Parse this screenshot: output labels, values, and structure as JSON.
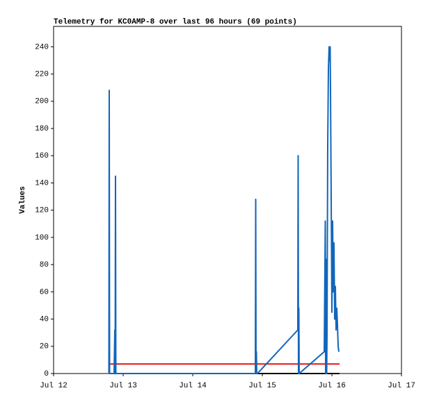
{
  "chart_data": {
    "type": "line",
    "title": "Telemetry for KC0AMP-8 over last 96 hours (69 points)",
    "y_label": "Values",
    "xlim": [
      12,
      17
    ],
    "xticks": [
      {
        "value": 12,
        "label": "Jul 12"
      },
      {
        "value": 13,
        "label": "Jul 13"
      },
      {
        "value": 14,
        "label": "Jul 14"
      },
      {
        "value": 15,
        "label": "Jul 15"
      },
      {
        "value": 16,
        "label": "Jul 16"
      },
      {
        "value": 17,
        "label": "Jul 17"
      }
    ],
    "ylim": [
      0,
      255
    ],
    "yticks": [
      0,
      20,
      40,
      60,
      80,
      100,
      120,
      140,
      160,
      180,
      200,
      220,
      240
    ],
    "series": [
      {
        "color": "#000000",
        "x": [
          12.8,
          16.11
        ],
        "values": [
          0,
          0
        ]
      },
      {
        "color": "#ee1111",
        "x": [
          12.8,
          16.11
        ],
        "values": [
          7,
          7
        ]
      },
      {
        "color": "#1166bb",
        "x": [
          12.795,
          12.8,
          12.805,
          12.87,
          12.875,
          12.88,
          12.885,
          12.89,
          12.895,
          14.9,
          14.905,
          14.91,
          14.915,
          14.92,
          14.93,
          15.51,
          15.515,
          15.52,
          15.525,
          15.53,
          15.89,
          15.905,
          15.91,
          15.915,
          15.92,
          15.925,
          15.93,
          15.94,
          15.95,
          15.96,
          15.97,
          15.975,
          15.98,
          15.99,
          16.0,
          16.01,
          16.02,
          16.03,
          16.04,
          16.05,
          16.06,
          16.07,
          16.08,
          16.09,
          16.1
        ],
        "values": [
          0,
          208,
          0,
          0,
          16,
          32,
          0,
          145,
          0,
          0,
          128,
          0,
          16,
          0,
          0,
          32,
          160,
          0,
          48,
          0,
          16,
          112,
          0,
          84,
          28,
          0,
          28,
          168,
          224,
          240,
          230,
          240,
          208,
          128,
          45,
          112,
          60,
          96,
          40,
          64,
          32,
          48,
          36,
          20,
          16
        ]
      }
    ]
  }
}
